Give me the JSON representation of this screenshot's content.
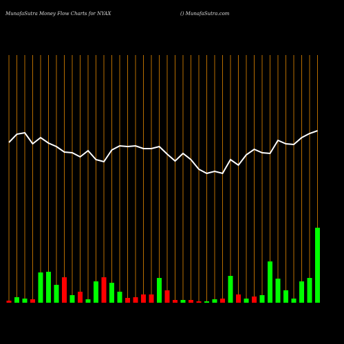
{
  "chart_data": {
    "type": "bar-line",
    "title": "MunafaSutra  Money Flow  Charts for NYAX",
    "subtitle": "() MunafaSutra.com",
    "categories": [
      null,
      null,
      null,
      null,
      null,
      null,
      null,
      null,
      null,
      null,
      null,
      null,
      null,
      null,
      null,
      null,
      null,
      null,
      null,
      null,
      null,
      null,
      null,
      null,
      null,
      null,
      null,
      null,
      null,
      null,
      null,
      null,
      null,
      null,
      null,
      null,
      null,
      null,
      null,
      null
    ],
    "values": [
      3,
      8,
      6,
      5,
      44,
      45,
      26,
      37,
      11,
      16,
      5,
      31,
      37,
      29,
      16,
      7,
      8,
      12,
      12,
      36,
      18,
      4,
      4,
      4,
      2,
      2,
      5,
      6,
      39,
      12,
      6,
      9,
      11,
      60,
      35,
      18,
      6,
      31,
      36,
      109
    ],
    "colors": [
      "#ff0000",
      "#00ff00",
      "#00ff00",
      "#ff0000",
      "#00ff00",
      "#00ff00",
      "#00ff00",
      "#ff0000",
      "#00ff00",
      "#ff0000",
      "#00ff00",
      "#00ff00",
      "#ff0000",
      "#00ff00",
      "#00ff00",
      "#ff0000",
      "#ff0000",
      "#ff0000",
      "#ff0000",
      "#00ff00",
      "#ff0000",
      "#ff0000",
      "#00ff00",
      "#ff0000",
      "#ff0000",
      "#00ff00",
      "#00ff00",
      "#ff0000",
      "#00ff00",
      "#ff0000",
      "#00ff00",
      "#ff0000",
      "#00ff00",
      "#00ff00",
      "#00ff00",
      "#00ff00",
      "#00ff00",
      "#00ff00",
      "#00ff00",
      "#00ff00"
    ],
    "line": {
      "color": "#ffffff",
      "values": [
        233,
        245,
        247,
        231,
        240,
        232,
        227,
        219,
        218,
        212,
        221,
        208,
        205,
        222,
        228,
        227,
        228,
        224,
        224,
        227,
        216,
        206,
        217,
        208,
        194,
        188,
        191,
        188,
        208,
        200,
        215,
        223,
        218,
        217,
        236,
        231,
        230,
        240,
        246,
        250
      ]
    },
    "ylim": [
      0,
      360
    ],
    "grid": true,
    "grid_color": "#b86e00"
  }
}
